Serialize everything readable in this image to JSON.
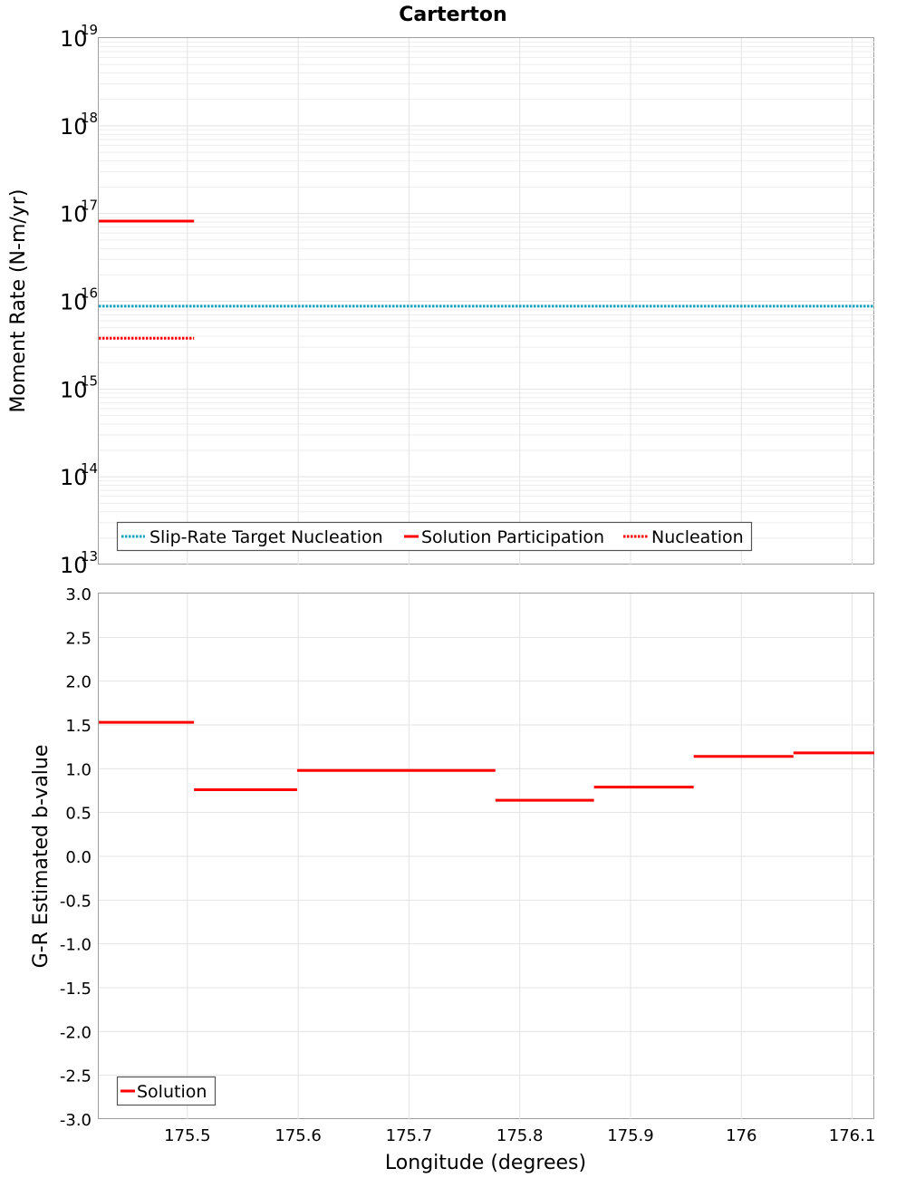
{
  "chart_data": [
    {
      "type": "line",
      "title": "Carterton",
      "xlabel": "",
      "ylabel": "Moment Rate (N-m/yr)",
      "yscale": "log",
      "xlim": [
        175.42,
        176.12
      ],
      "ylim_exponents": [
        13,
        19
      ],
      "ytick_base": "10",
      "yticks": [
        "13",
        "14",
        "15",
        "16",
        "17",
        "18",
        "19"
      ],
      "legend": {
        "placement": "bottom-left",
        "entries": [
          {
            "label": "Slip-Rate Target Nucleation",
            "color": "#17a2c2",
            "style": "dotted"
          },
          {
            "label": "Solution Participation",
            "color": "#ff0000",
            "style": "solid"
          },
          {
            "label": "Nucleation",
            "color": "#ff0000",
            "style": "dotted"
          }
        ]
      },
      "series": [
        {
          "name": "Slip-Rate Target Nucleation",
          "color": "#17a2c2",
          "style": "dotted",
          "segments": [
            {
              "x0": 175.42,
              "x1": 176.12,
              "y": 8800000000000000.0
            }
          ]
        },
        {
          "name": "Solution Participation",
          "color": "#ff0000",
          "style": "solid",
          "segments": [
            {
              "x0": 175.42,
              "x1": 175.506,
              "y": 8.2e+16
            }
          ]
        },
        {
          "name": "Nucleation",
          "color": "#ff0000",
          "style": "dotted",
          "segments": [
            {
              "x0": 175.42,
              "x1": 175.506,
              "y": 3800000000000000.0
            }
          ]
        }
      ]
    },
    {
      "type": "line",
      "title": "",
      "xlabel": "Longitude (degrees)",
      "ylabel": "G-R Estimated b-value",
      "xlim": [
        175.42,
        176.12
      ],
      "ylim": [
        -3.0,
        3.0
      ],
      "xticks": [
        {
          "value": 175.5,
          "label": "175.5"
        },
        {
          "value": 175.6,
          "label": "175.6"
        },
        {
          "value": 175.7,
          "label": "175.7"
        },
        {
          "value": 175.8,
          "label": "175.8"
        },
        {
          "value": 175.9,
          "label": "175.9"
        },
        {
          "value": 176.0,
          "label": "176"
        },
        {
          "value": 176.1,
          "label": "176.1"
        }
      ],
      "yticks": [
        {
          "value": 3.0,
          "label": "3.0"
        },
        {
          "value": 2.5,
          "label": "2.5"
        },
        {
          "value": 2.0,
          "label": "2.0"
        },
        {
          "value": 1.5,
          "label": "1.5"
        },
        {
          "value": 1.0,
          "label": "1.0"
        },
        {
          "value": 0.5,
          "label": "0.5"
        },
        {
          "value": 0.0,
          "label": "0.0"
        },
        {
          "value": -0.5,
          "label": "-0.5"
        },
        {
          "value": -1.0,
          "label": "-1.0"
        },
        {
          "value": -1.5,
          "label": "-1.5"
        },
        {
          "value": -2.0,
          "label": "-2.0"
        },
        {
          "value": -2.5,
          "label": "-2.5"
        },
        {
          "value": -3.0,
          "label": "-3.0"
        }
      ],
      "legend": {
        "placement": "bottom-left",
        "entries": [
          {
            "label": "Solution",
            "color": "#ff0000",
            "style": "solid"
          }
        ]
      },
      "series": [
        {
          "name": "Solution",
          "color": "#ff0000",
          "style": "solid",
          "segments": [
            {
              "x0": 175.42,
              "x1": 175.506,
              "y": 1.53
            },
            {
              "x0": 175.506,
              "x1": 175.599,
              "y": 0.76
            },
            {
              "x0": 175.599,
              "x1": 175.778,
              "y": 0.98
            },
            {
              "x0": 175.778,
              "x1": 175.867,
              "y": 0.64
            },
            {
              "x0": 175.867,
              "x1": 175.957,
              "y": 0.79
            },
            {
              "x0": 175.957,
              "x1": 176.047,
              "y": 1.14
            },
            {
              "x0": 176.047,
              "x1": 176.12,
              "y": 1.18
            }
          ]
        }
      ]
    }
  ]
}
